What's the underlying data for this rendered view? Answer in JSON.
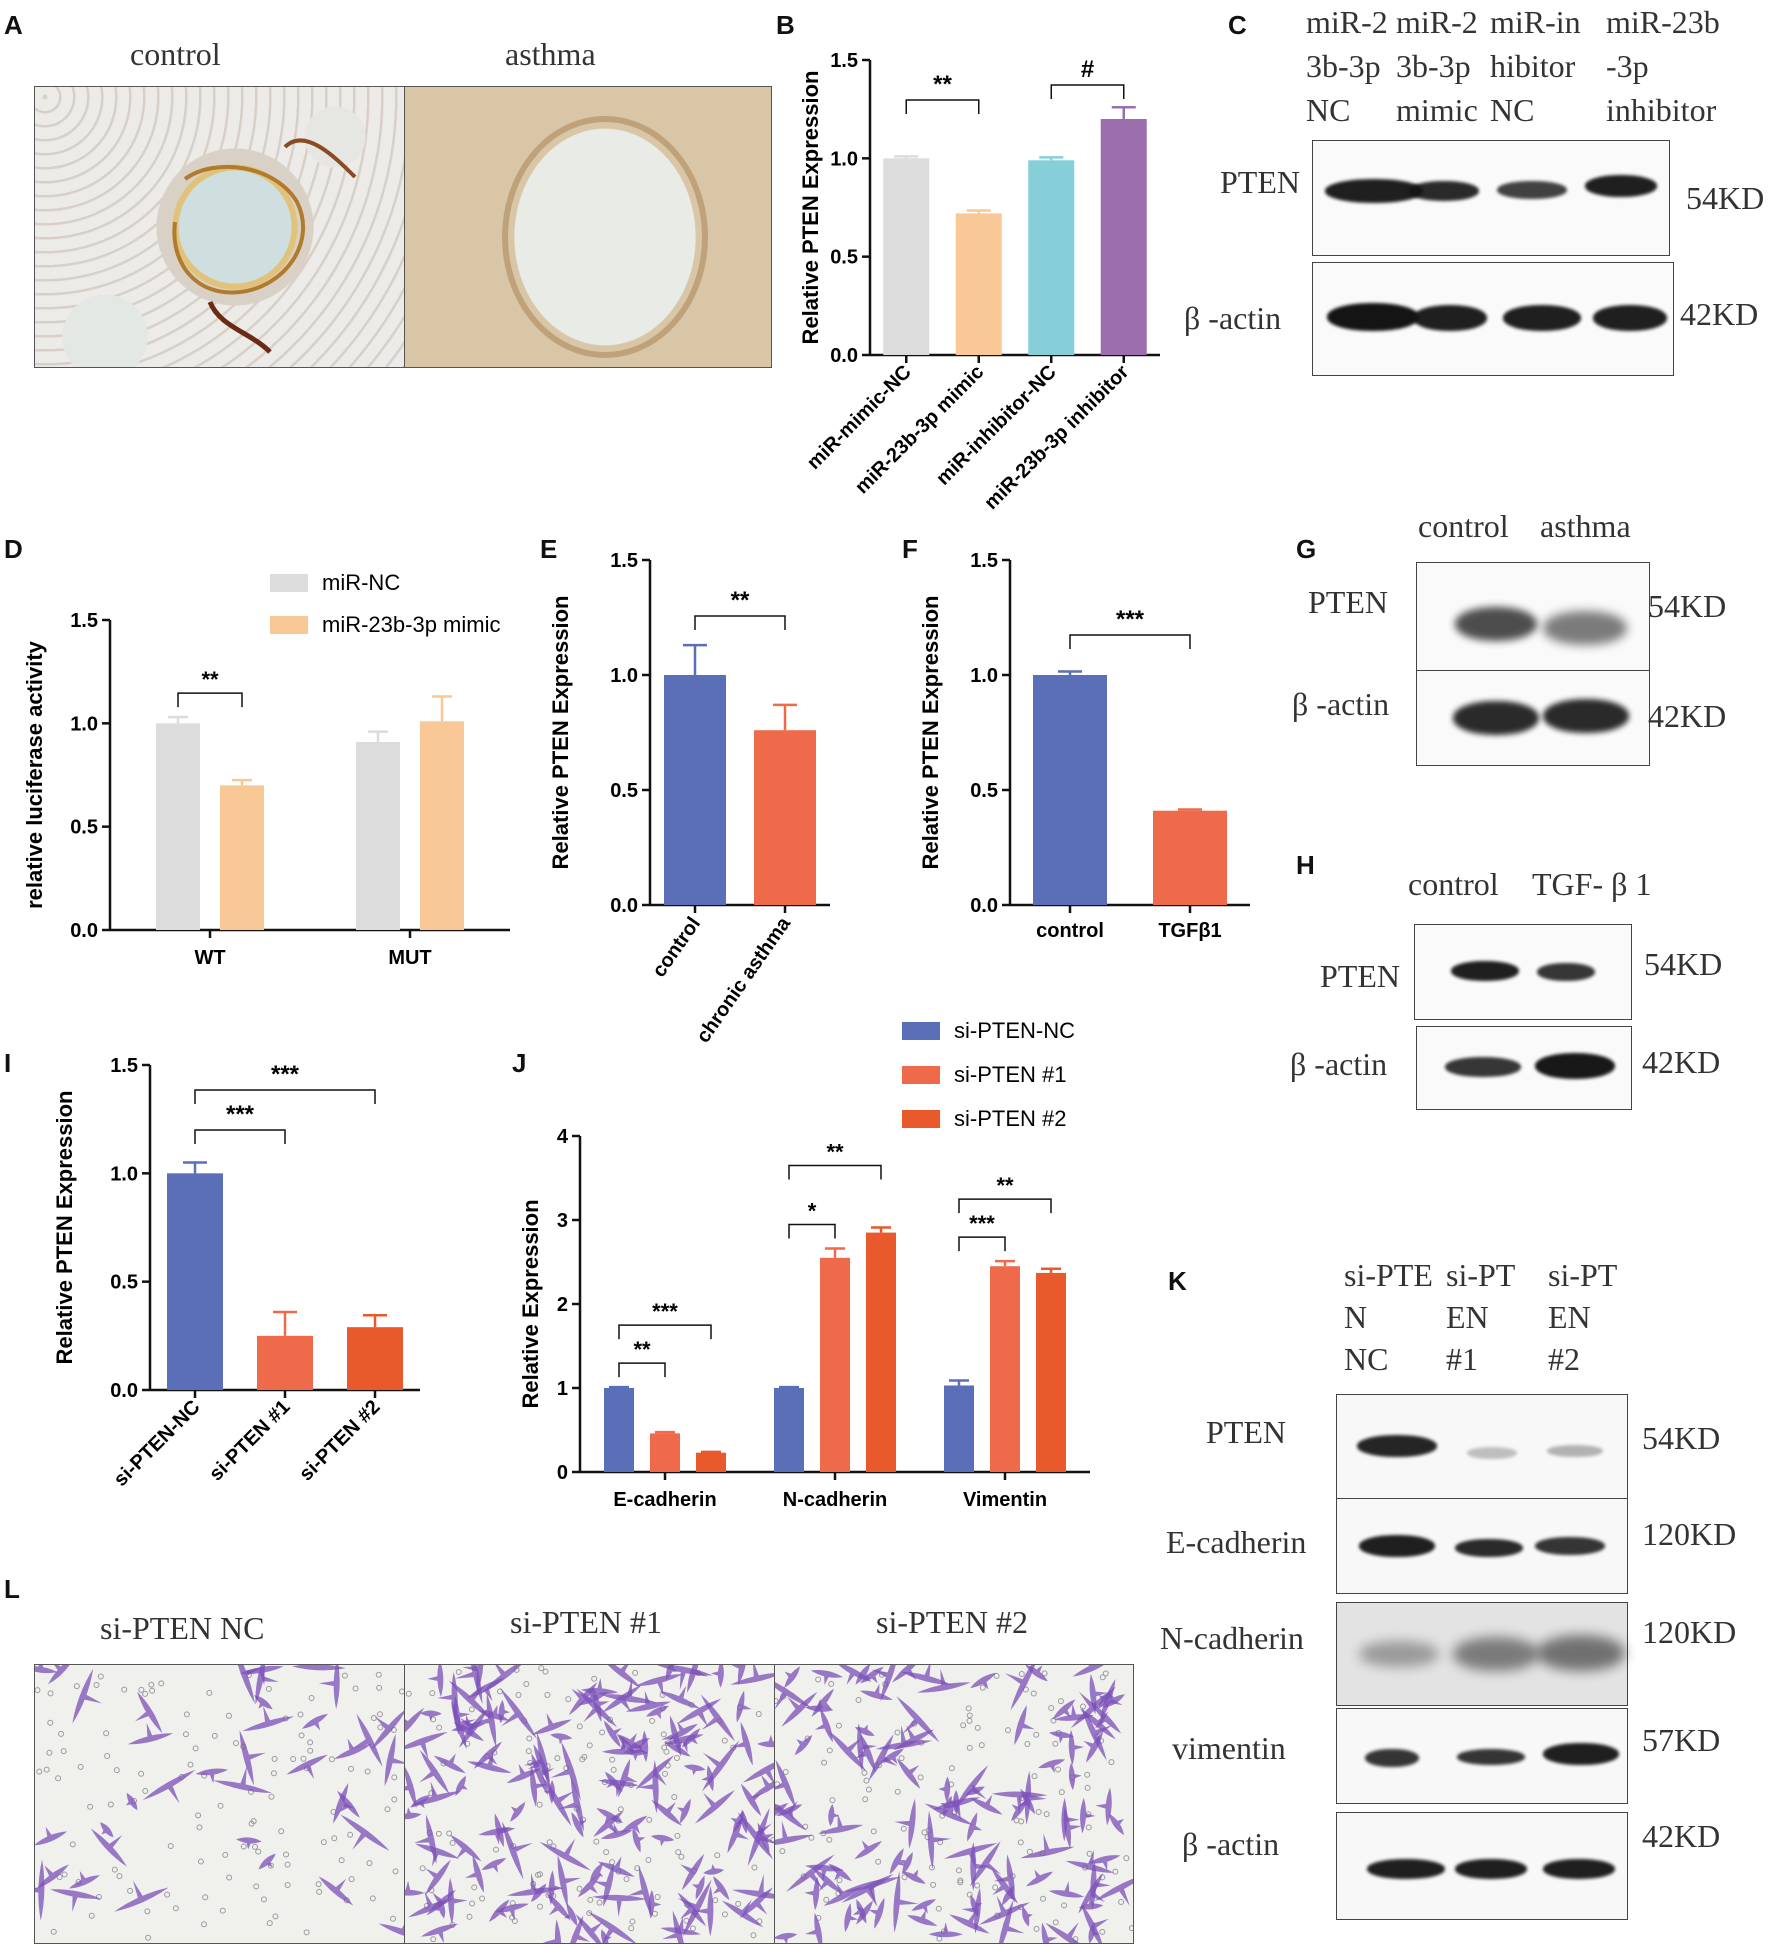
{
  "panels": {
    "A": {
      "letter": "A",
      "labels": [
        "control",
        "asthma"
      ]
    },
    "B": {
      "letter": "B"
    },
    "C": {
      "letter": "C",
      "lanes": [
        [
          "miR-2",
          "3b-3p",
          "NC"
        ],
        [
          "miR-2",
          "3b-3p",
          "mimic"
        ],
        [
          "miR-in",
          "hibitor",
          "NC"
        ],
        [
          "miR-23b",
          "-3p",
          "inhibitor"
        ]
      ],
      "rows": [
        "PTEN",
        "β -actin"
      ],
      "sizes": [
        "54KD",
        "42KD"
      ]
    },
    "D": {
      "letter": "D"
    },
    "E": {
      "letter": "E"
    },
    "F": {
      "letter": "F"
    },
    "G": {
      "letter": "G",
      "lanes": [
        "control",
        "asthma"
      ],
      "rows": [
        "PTEN",
        "β -actin"
      ],
      "sizes": [
        "54KD",
        "42KD"
      ]
    },
    "H": {
      "letter": "H",
      "lanes": [
        "control",
        "TGF- β 1"
      ],
      "rows": [
        "PTEN",
        "β -actin"
      ],
      "sizes": [
        "54KD",
        "42KD"
      ]
    },
    "I": {
      "letter": "I"
    },
    "J": {
      "letter": "J"
    },
    "K": {
      "letter": "K",
      "lanes": [
        [
          "si-PTE",
          "N",
          "NC"
        ],
        [
          "si-PT",
          "EN",
          "#1"
        ],
        [
          "si-PT",
          "EN",
          "#2"
        ]
      ],
      "rows": [
        "PTEN",
        "E-cadherin",
        "N-cadherin",
        "vimentin",
        "β -actin"
      ],
      "sizes": [
        "54KD",
        "120KD",
        "120KD",
        "57KD",
        "42KD"
      ]
    },
    "L": {
      "letter": "L",
      "labels": [
        "si-PTEN NC",
        "si-PTEN #1",
        "si-PTEN #2"
      ]
    }
  },
  "colors": {
    "grey": "#dcdcdc",
    "peach": "#f8c896",
    "cyan": "#86cfd9",
    "purple": "#9b6fae",
    "blue": "#5b6eb8",
    "coral": "#ef6a4a",
    "orange": "#e85a2c",
    "stain": "#7b4fb8"
  },
  "chart_data": [
    {
      "id": "B",
      "type": "bar",
      "title": "",
      "xlabel": "",
      "ylabel": "Relative PTEN Expression",
      "ylim": [
        0,
        1.5
      ],
      "ticks": [
        "0.0",
        "0.5",
        "1.0",
        "1.5"
      ],
      "categories": [
        "miR-mimic-NC",
        "miR-23b-3p mimic",
        "miR-inhibitor-NC",
        "miR-23b-3p inhibitor"
      ],
      "values": [
        1.0,
        0.72,
        0.99,
        1.2
      ],
      "errors": [
        0.01,
        0.015,
        0.015,
        0.06
      ],
      "bar_colors": [
        "#dcdcdc",
        "#f8c896",
        "#86cfd9",
        "#9b6fae"
      ],
      "significance": [
        {
          "from": 0,
          "to": 1,
          "label": "**"
        },
        {
          "from": 2,
          "to": 3,
          "label": "#"
        }
      ]
    },
    {
      "id": "D",
      "type": "bar",
      "title": "",
      "xlabel": "",
      "ylabel": "relative luciferase activity",
      "ylim": [
        0,
        1.5
      ],
      "ticks": [
        "0.0",
        "0.5",
        "1.0",
        "1.5"
      ],
      "categories": [
        "WT",
        "MUT"
      ],
      "series": [
        {
          "name": "miR-NC",
          "values": [
            1.0,
            0.91
          ],
          "errors": [
            0.03,
            0.05
          ],
          "color": "#dcdcdc"
        },
        {
          "name": "miR-23b-3p mimic",
          "values": [
            0.7,
            1.01
          ],
          "errors": [
            0.025,
            0.12
          ],
          "color": "#f8c896"
        }
      ],
      "legend": "top-right",
      "significance": [
        {
          "group": 0,
          "label": "**"
        }
      ]
    },
    {
      "id": "E",
      "type": "bar",
      "title": "",
      "xlabel": "",
      "ylabel": "Relative PTEN Expression",
      "ylim": [
        0,
        1.5
      ],
      "ticks": [
        "0.0",
        "0.5",
        "1.0",
        "1.5"
      ],
      "categories": [
        "control",
        "chronic asthma"
      ],
      "values": [
        1.0,
        0.76
      ],
      "errors": [
        0.13,
        0.11
      ],
      "bar_colors": [
        "#5b6eb8",
        "#ef6a4a"
      ],
      "significance": [
        {
          "from": 0,
          "to": 1,
          "label": "**"
        }
      ]
    },
    {
      "id": "F",
      "type": "bar",
      "title": "",
      "xlabel": "",
      "ylabel": "Relative PTEN Expression",
      "ylim": [
        0,
        1.5
      ],
      "ticks": [
        "0.0",
        "0.5",
        "1.0",
        "1.5"
      ],
      "categories": [
        "control",
        "TGFβ1"
      ],
      "values": [
        1.0,
        0.41
      ],
      "errors": [
        0.015,
        0.005
      ],
      "bar_colors": [
        "#5b6eb8",
        "#ef6a4a"
      ],
      "significance": [
        {
          "from": 0,
          "to": 1,
          "label": "***"
        }
      ]
    },
    {
      "id": "I",
      "type": "bar",
      "title": "",
      "xlabel": "",
      "ylabel": "Relative PTEN Expression",
      "ylim": [
        0,
        1.5
      ],
      "ticks": [
        "0.0",
        "0.5",
        "1.0",
        "1.5"
      ],
      "categories": [
        "si-PTEN-NC",
        "si-PTEN #1",
        "si-PTEN #2"
      ],
      "values": [
        1.0,
        0.25,
        0.29
      ],
      "errors": [
        0.05,
        0.11,
        0.055
      ],
      "bar_colors": [
        "#5b6eb8",
        "#ef6a4a",
        "#e85a2c"
      ],
      "significance": [
        {
          "from": 0,
          "to": 1,
          "label": "***"
        },
        {
          "from": 0,
          "to": 2,
          "label": "***"
        }
      ]
    },
    {
      "id": "J",
      "type": "bar",
      "title": "",
      "xlabel": "",
      "ylabel": "Relative Expression",
      "ylim": [
        0,
        4
      ],
      "ticks": [
        "0",
        "1",
        "2",
        "3",
        "4"
      ],
      "categories": [
        "E-cadherin",
        "N-cadherin",
        "Vimentin"
      ],
      "series": [
        {
          "name": "si-PTEN-NC",
          "values": [
            1.0,
            1.0,
            1.03
          ],
          "errors": [
            0.01,
            0.01,
            0.06
          ],
          "color": "#5b6eb8"
        },
        {
          "name": "si-PTEN #1",
          "values": [
            0.46,
            2.55,
            2.45
          ],
          "errors": [
            0.015,
            0.11,
            0.06
          ],
          "color": "#ef6a4a"
        },
        {
          "name": "si-PTEN #2",
          "values": [
            0.23,
            2.85,
            2.37
          ],
          "errors": [
            0.01,
            0.06,
            0.05
          ],
          "color": "#e85a2c"
        }
      ],
      "legend": "top",
      "significance": [
        {
          "group": 0,
          "from": 0,
          "to": 1,
          "label": "**"
        },
        {
          "group": 0,
          "from": 0,
          "to": 2,
          "label": "***"
        },
        {
          "group": 1,
          "from": 0,
          "to": 1,
          "label": "*"
        },
        {
          "group": 1,
          "from": 0,
          "to": 2,
          "label": "**"
        },
        {
          "group": 2,
          "from": 0,
          "to": 1,
          "label": "***"
        },
        {
          "group": 2,
          "from": 0,
          "to": 2,
          "label": "**"
        }
      ]
    }
  ]
}
